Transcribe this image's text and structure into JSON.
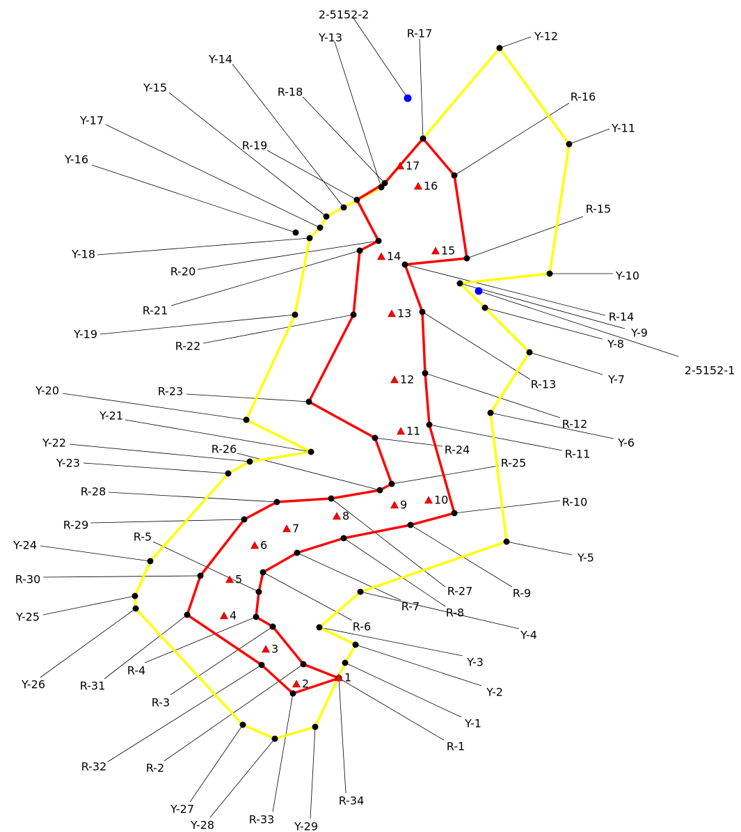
{
  "colors": {
    "yellow_line": "#ffff00",
    "red_line": "#ff0000",
    "station_marker": "#000000",
    "control_point": "#0000ff",
    "triangle_marker": "#ff0000",
    "leader_line": "#000000"
  },
  "control_points": [
    {
      "id": "cp-2-5152-2",
      "label": "2-5152-2"
    },
    {
      "id": "cp-2-5152-1",
      "label": "2-5152-1"
    }
  ],
  "red_points": [
    {
      "id": "R-1",
      "label": "R-1"
    },
    {
      "id": "R-2",
      "label": "R-2"
    },
    {
      "id": "R-3",
      "label": "R-3"
    },
    {
      "id": "R-4",
      "label": "R-4"
    },
    {
      "id": "R-5",
      "label": "R-5"
    },
    {
      "id": "R-6",
      "label": "R-6"
    },
    {
      "id": "R-7",
      "label": "R-7"
    },
    {
      "id": "R-8",
      "label": "R-8"
    },
    {
      "id": "R-9",
      "label": "R-9"
    },
    {
      "id": "R-10",
      "label": "R-10"
    },
    {
      "id": "R-11",
      "label": "R-11"
    },
    {
      "id": "R-12",
      "label": "R-12"
    },
    {
      "id": "R-13",
      "label": "R-13"
    },
    {
      "id": "R-14",
      "label": "R-14"
    },
    {
      "id": "R-15",
      "label": "R-15"
    },
    {
      "id": "R-16",
      "label": "R-16"
    },
    {
      "id": "R-17",
      "label": "R-17"
    },
    {
      "id": "R-18",
      "label": "R-18"
    },
    {
      "id": "R-19",
      "label": "R-19"
    },
    {
      "id": "R-20",
      "label": "R-20"
    },
    {
      "id": "R-21",
      "label": "R-21"
    },
    {
      "id": "R-22",
      "label": "R-22"
    },
    {
      "id": "R-23",
      "label": "R-23"
    },
    {
      "id": "R-24",
      "label": "R-24"
    },
    {
      "id": "R-25",
      "label": "R-25"
    },
    {
      "id": "R-26",
      "label": "R-26"
    },
    {
      "id": "R-27",
      "label": "R-27"
    },
    {
      "id": "R-28",
      "label": "R-28"
    },
    {
      "id": "R-29",
      "label": "R-29"
    },
    {
      "id": "R-30",
      "label": "R-30"
    },
    {
      "id": "R-31",
      "label": "R-31"
    },
    {
      "id": "R-32",
      "label": "R-32"
    },
    {
      "id": "R-33",
      "label": "R-33"
    },
    {
      "id": "R-34",
      "label": "R-34"
    }
  ],
  "yellow_points": [
    {
      "id": "Y-1",
      "label": "Y-1"
    },
    {
      "id": "Y-2",
      "label": "Y-2"
    },
    {
      "id": "Y-3",
      "label": "Y-3"
    },
    {
      "id": "Y-4",
      "label": "Y-4"
    },
    {
      "id": "Y-5",
      "label": "Y-5"
    },
    {
      "id": "Y-6",
      "label": "Y-6"
    },
    {
      "id": "Y-7",
      "label": "Y-7"
    },
    {
      "id": "Y-8",
      "label": "Y-8"
    },
    {
      "id": "Y-9",
      "label": "Y-9"
    },
    {
      "id": "Y-10",
      "label": "Y-10"
    },
    {
      "id": "Y-11",
      "label": "Y-11"
    },
    {
      "id": "Y-12",
      "label": "Y-12"
    },
    {
      "id": "Y-13",
      "label": "Y-13"
    },
    {
      "id": "Y-14",
      "label": "Y-14"
    },
    {
      "id": "Y-15",
      "label": "Y-15"
    },
    {
      "id": "Y-16",
      "label": "Y-16"
    },
    {
      "id": "Y-17",
      "label": "Y-17"
    },
    {
      "id": "Y-18",
      "label": "Y-18"
    },
    {
      "id": "Y-19",
      "label": "Y-19"
    },
    {
      "id": "Y-20",
      "label": "Y-20"
    },
    {
      "id": "Y-21",
      "label": "Y-21"
    },
    {
      "id": "Y-22",
      "label": "Y-22"
    },
    {
      "id": "Y-23",
      "label": "Y-23"
    },
    {
      "id": "Y-24",
      "label": "Y-24"
    },
    {
      "id": "Y-25",
      "label": "Y-25"
    },
    {
      "id": "Y-26",
      "label": "Y-26"
    },
    {
      "id": "Y-27",
      "label": "Y-27"
    },
    {
      "id": "Y-28",
      "label": "Y-28"
    },
    {
      "id": "Y-29",
      "label": "Y-29"
    }
  ],
  "triangle_markers": [
    {
      "id": "t1",
      "label": "1"
    },
    {
      "id": "t2",
      "label": "2"
    },
    {
      "id": "t3",
      "label": "3"
    },
    {
      "id": "t4",
      "label": "4"
    },
    {
      "id": "t5",
      "label": "5"
    },
    {
      "id": "t6",
      "label": "6"
    },
    {
      "id": "t7",
      "label": "7"
    },
    {
      "id": "t8",
      "label": "8"
    },
    {
      "id": "t9",
      "label": "9"
    },
    {
      "id": "t10",
      "label": "10"
    },
    {
      "id": "t11",
      "label": "11"
    },
    {
      "id": "t12",
      "label": "12"
    },
    {
      "id": "t13",
      "label": "13"
    },
    {
      "id": "t14",
      "label": "14"
    },
    {
      "id": "t15",
      "label": "15"
    },
    {
      "id": "t16",
      "label": "16"
    },
    {
      "id": "t17",
      "label": "17"
    }
  ]
}
